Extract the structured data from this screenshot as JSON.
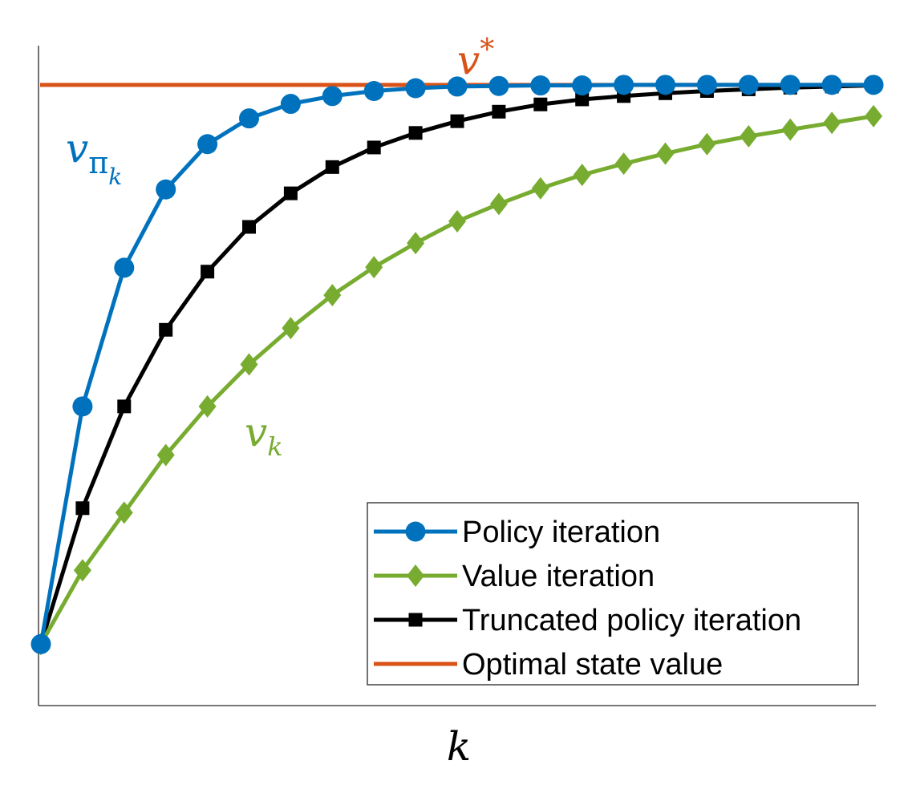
{
  "chart_data": {
    "type": "line",
    "x": [
      0,
      1,
      2,
      3,
      4,
      5,
      6,
      7,
      8,
      9,
      10,
      11,
      12,
      13,
      14,
      15,
      16,
      17,
      18,
      19,
      20
    ],
    "xlabel": "k",
    "ylabel": "",
    "xlim": [
      0,
      20
    ],
    "ylim": [
      -0.11,
      1.07
    ],
    "grid": false,
    "legend_position": "bottom-right",
    "series": [
      {
        "name": "Policy iteration",
        "color": "#0072BD",
        "marker": "circle",
        "values": [
          0,
          0.425,
          0.673,
          0.813,
          0.894,
          0.94,
          0.966,
          0.98,
          0.989,
          0.994,
          0.997,
          0.998,
          0.999,
          0.999,
          1.0,
          1.0,
          1.0,
          1.0,
          1.0,
          1.0,
          1.0
        ],
        "label_parts": [
          "v",
          "π",
          "k"
        ]
      },
      {
        "name": "Value iteration",
        "color": "#77AC30",
        "marker": "diamond",
        "values": [
          0,
          0.132,
          0.235,
          0.338,
          0.425,
          0.5,
          0.565,
          0.624,
          0.674,
          0.717,
          0.756,
          0.787,
          0.815,
          0.839,
          0.859,
          0.877,
          0.894,
          0.908,
          0.92,
          0.932,
          0.944
        ],
        "label_parts": [
          "v",
          "k"
        ]
      },
      {
        "name": "Truncated policy iteration",
        "color": "#000000",
        "marker": "square",
        "values": [
          0,
          0.243,
          0.425,
          0.562,
          0.666,
          0.746,
          0.806,
          0.853,
          0.888,
          0.914,
          0.935,
          0.952,
          0.965,
          0.974,
          0.98,
          0.985,
          0.989,
          0.992,
          0.995,
          0.997,
          0.999
        ]
      },
      {
        "name": "Optimal state value",
        "color": "#D95319",
        "marker": "none",
        "constant": 1.0,
        "label_parts": [
          "v",
          "*"
        ]
      }
    ]
  }
}
